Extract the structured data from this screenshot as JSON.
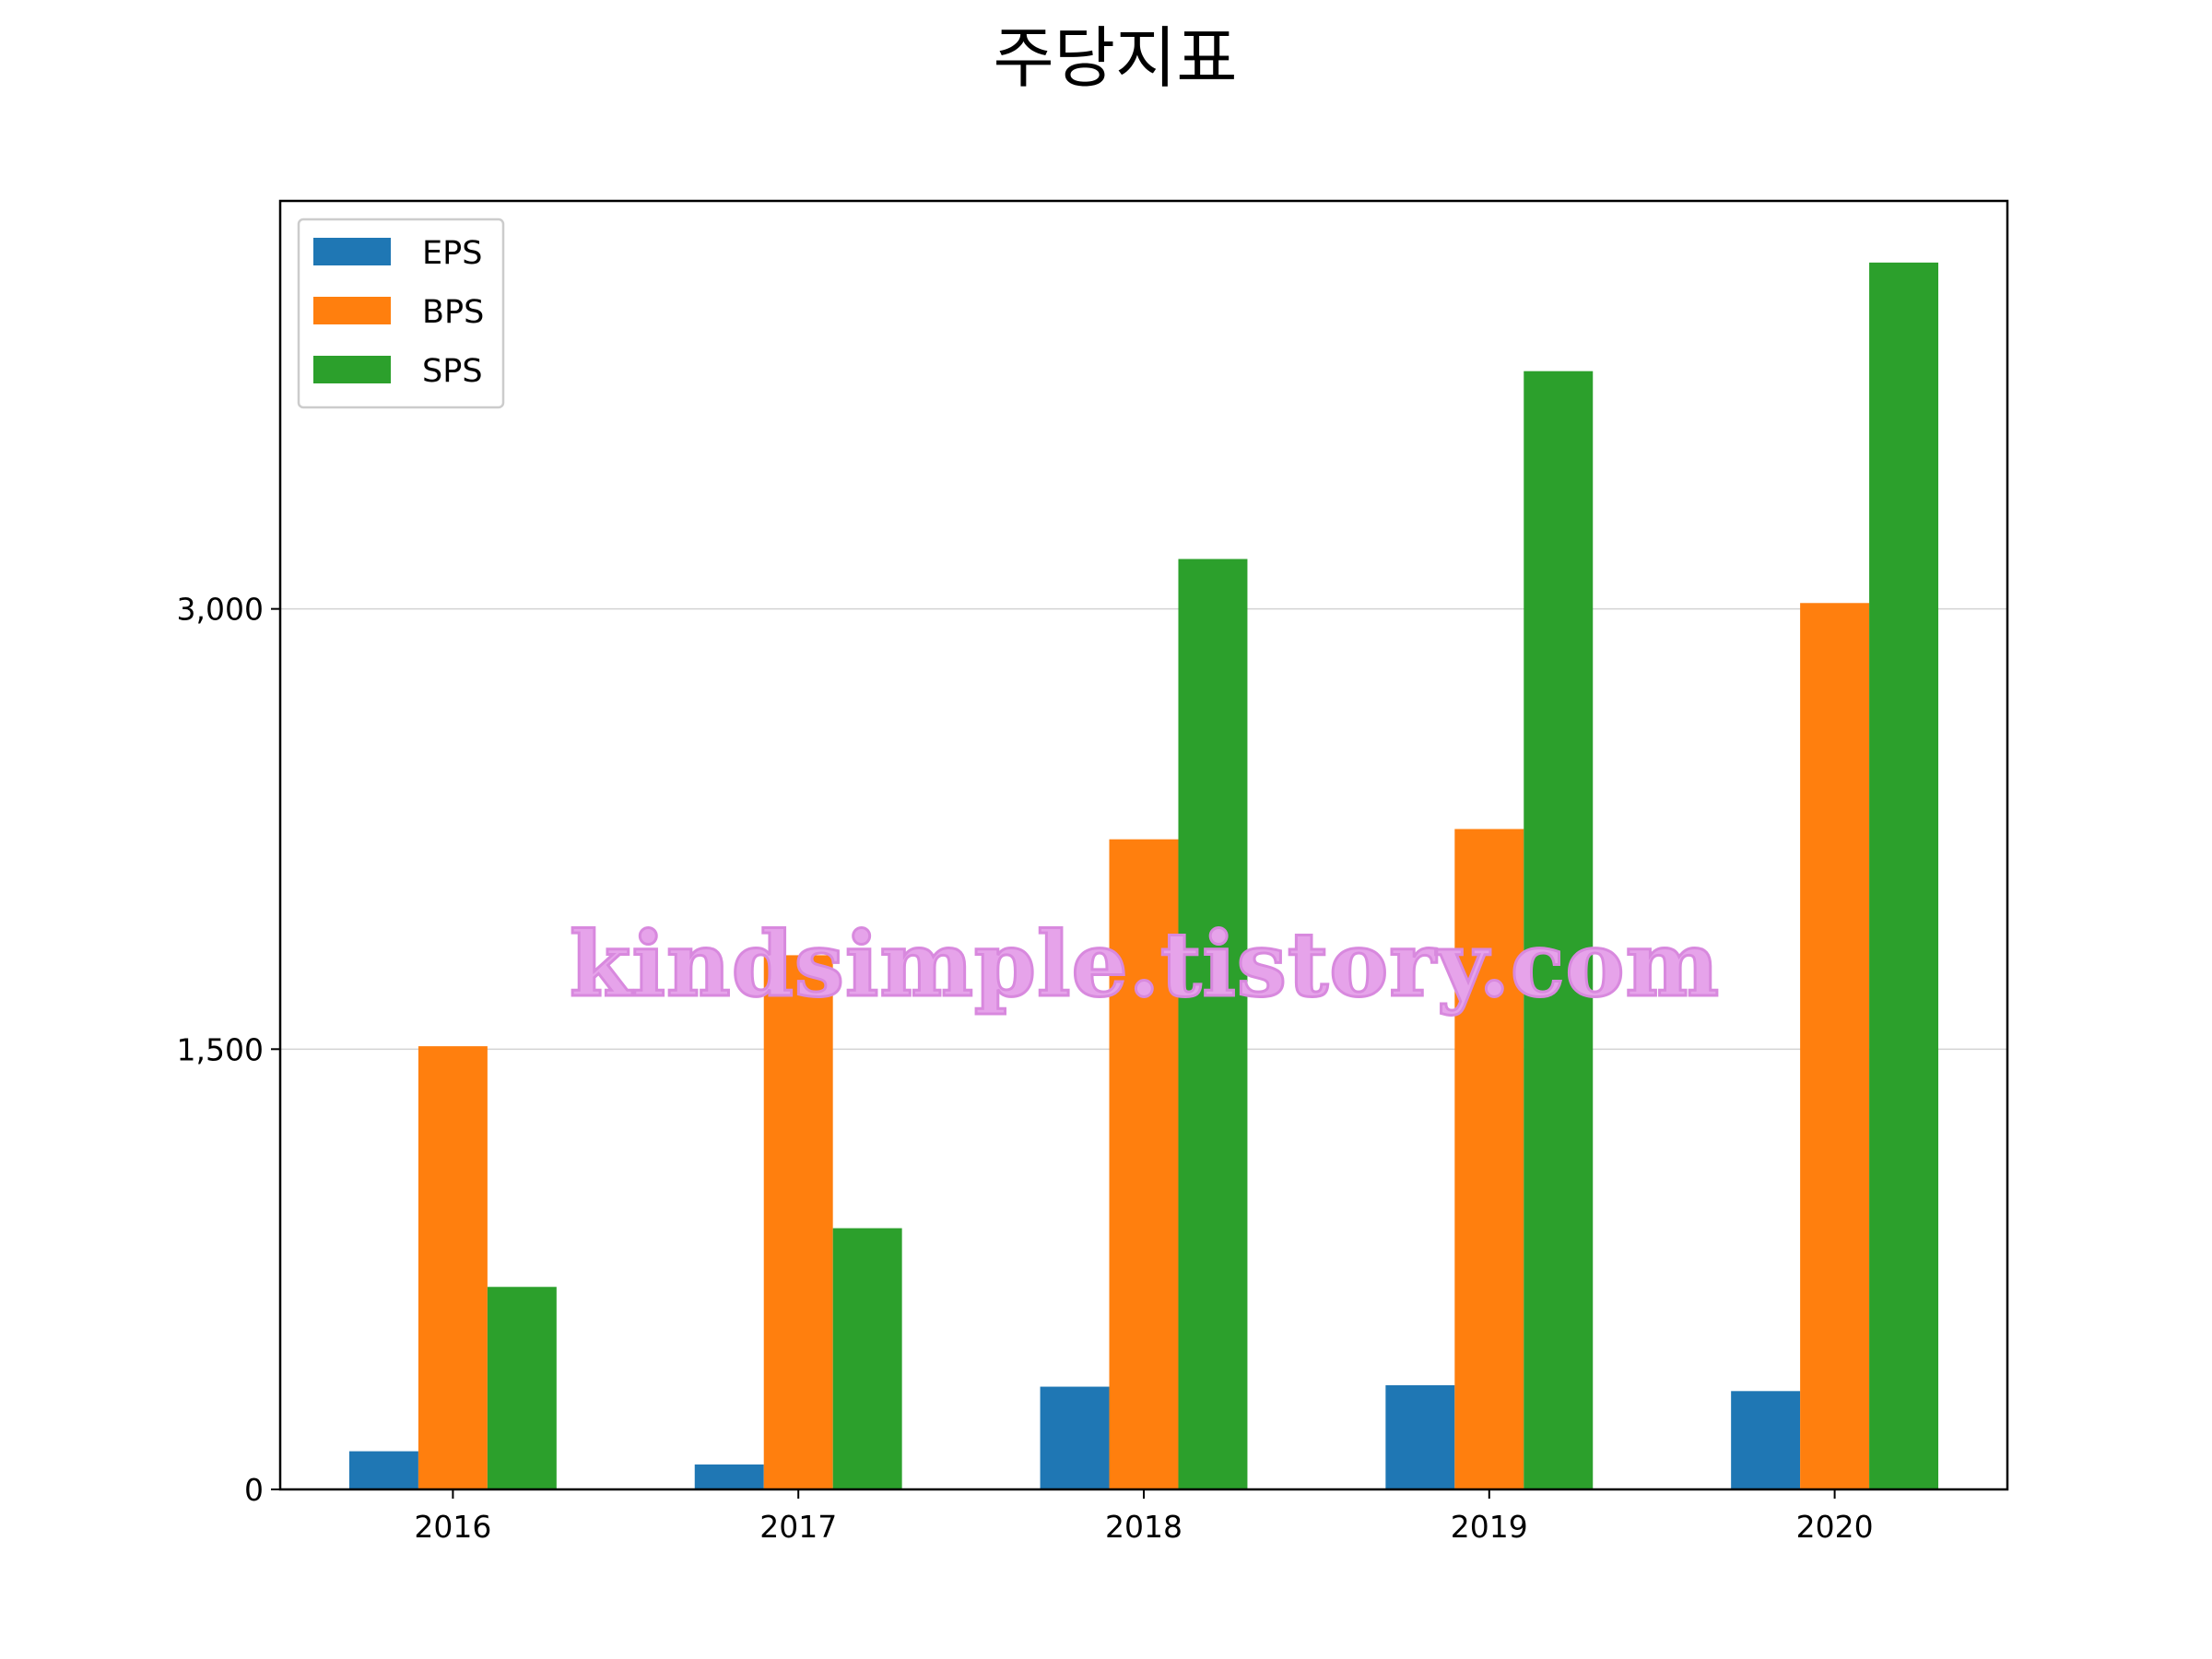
{
  "chart_data": {
    "type": "bar",
    "title": "주당지표",
    "xlabel": "",
    "ylabel": "",
    "categories": [
      "2016",
      "2017",
      "2018",
      "2019",
      "2020"
    ],
    "series": [
      {
        "name": "EPS",
        "color": "#1f77b4",
        "values": [
          130,
          85,
          350,
          355,
          335
        ]
      },
      {
        "name": "BPS",
        "color": "#ff7f0e",
        "values": [
          1510,
          1820,
          2215,
          2250,
          3020
        ]
      },
      {
        "name": "SPS",
        "color": "#2ca02c",
        "values": [
          690,
          890,
          3170,
          3810,
          4180
        ]
      }
    ],
    "ylim": [
      0,
      4390
    ],
    "yticks": [
      0,
      1500,
      3000
    ],
    "ytick_labels": [
      "0",
      "1,500",
      "3,000"
    ],
    "grid": "y",
    "legend_position": "upper-left",
    "watermark": "kindsimple.tistory.com"
  }
}
